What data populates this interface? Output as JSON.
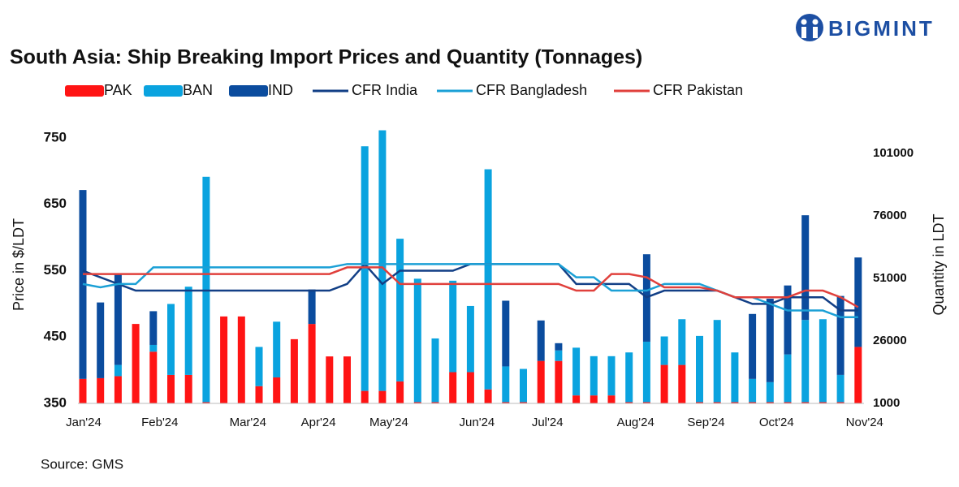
{
  "logo": "BIGMINT",
  "source": "Source: GMS",
  "chart_data": {
    "type": "combo",
    "title": "South Asia: Ship Breaking Import Prices and Quantity (Tonnages)",
    "y_label": "Price in $/LDT",
    "y2_label": "Quantity in LDT",
    "stacked": true,
    "categories": [
      "Jan'24",
      null,
      null,
      null,
      "Feb'24",
      null,
      null,
      null,
      null,
      "Mar'24",
      null,
      null,
      null,
      "Apr'24",
      null,
      null,
      null,
      "May'24",
      null,
      null,
      null,
      null,
      "Jun'24",
      null,
      null,
      null,
      "Jul'24",
      null,
      null,
      null,
      null,
      "Aug'24",
      null,
      null,
      null,
      "Sep'24",
      null,
      null,
      null,
      "Oct'24",
      null,
      null,
      null,
      null,
      "Nov'24"
    ],
    "ylim": [
      350,
      768
    ],
    "yticks": [
      350,
      450,
      550,
      650,
      750
    ],
    "y2lim": [
      1000,
      112000
    ],
    "y2ticks": [
      1000,
      26000,
      51000,
      76000,
      101000
    ],
    "series": [
      {
        "name": "PAK",
        "type": "bar",
        "axis": "y2",
        "color": "#ff1414",
        "values": [
          10800,
          11100,
          11900,
          32800,
          21700,
          12400,
          12400,
          1500,
          35800,
          35800,
          7900,
          11400,
          26700,
          32800,
          19800,
          19800,
          6000,
          6000,
          9800,
          1500,
          1500,
          13500,
          13500,
          6600,
          1500,
          1500,
          18000,
          18000,
          4200,
          4200,
          4200,
          1500,
          1500,
          16400,
          16400,
          1500,
          1500,
          1500,
          1500,
          1500,
          1500,
          1500,
          1500,
          1500,
          23600
        ]
      },
      {
        "name": "BAN",
        "type": "bar",
        "axis": "y2",
        "color": "#0aa3df",
        "values": [
          0,
          0,
          4500,
          0,
          2700,
          28400,
          35300,
          90200,
          0,
          0,
          15700,
          22300,
          0,
          0,
          0,
          0,
          97900,
          104300,
          57100,
          49400,
          25500,
          36600,
          26500,
          88100,
          14300,
          13300,
          0,
          4200,
          19100,
          15700,
          15700,
          19900,
          24200,
          11400,
          18300,
          26500,
          32900,
          19900,
          9300,
          8000,
          19100,
          32900,
          33200,
          10900,
          0
        ]
      },
      {
        "name": "IND",
        "type": "bar",
        "axis": "y2",
        "color": "#0b4c9e",
        "values": [
          75600,
          30300,
          36400,
          0,
          13500,
          0,
          0,
          0,
          0,
          0,
          0,
          0,
          0,
          13800,
          0,
          0,
          0,
          0,
          0,
          0,
          0,
          0,
          0,
          0,
          26300,
          0,
          16200,
          2900,
          0,
          0,
          0,
          0,
          35000,
          0,
          0,
          0,
          0,
          0,
          26000,
          33400,
          27600,
          41900,
          0,
          31600,
          35800
        ]
      },
      {
        "name": "CFR India",
        "type": "line",
        "color": "#123f86",
        "values": [
          550,
          540,
          530,
          520,
          520,
          520,
          520,
          520,
          520,
          520,
          520,
          520,
          520,
          520,
          520,
          530,
          560,
          530,
          550,
          550,
          550,
          550,
          560,
          560,
          560,
          560,
          560,
          560,
          530,
          530,
          530,
          530,
          510,
          520,
          520,
          520,
          520,
          510,
          500,
          500,
          510,
          510,
          510,
          490,
          490
        ]
      },
      {
        "name": "CFR Bangladesh",
        "type": "line",
        "color": "#1ba0d6",
        "values": [
          530,
          525,
          530,
          530,
          555,
          555,
          555,
          555,
          555,
          555,
          555,
          555,
          555,
          555,
          555,
          560,
          560,
          560,
          560,
          560,
          560,
          560,
          560,
          560,
          560,
          560,
          560,
          560,
          540,
          540,
          520,
          520,
          520,
          530,
          530,
          530,
          520,
          510,
          510,
          500,
          490,
          490,
          490,
          480,
          480
        ]
      },
      {
        "name": "CFR Pakistan",
        "type": "line",
        "color": "#e0403c",
        "values": [
          545,
          545,
          545,
          545,
          545,
          545,
          545,
          545,
          545,
          545,
          545,
          545,
          545,
          545,
          545,
          555,
          555,
          555,
          530,
          530,
          530,
          530,
          530,
          530,
          530,
          530,
          530,
          530,
          520,
          520,
          545,
          545,
          540,
          525,
          525,
          525,
          520,
          510,
          510,
          510,
          510,
          520,
          520,
          510,
          495
        ]
      }
    ]
  }
}
